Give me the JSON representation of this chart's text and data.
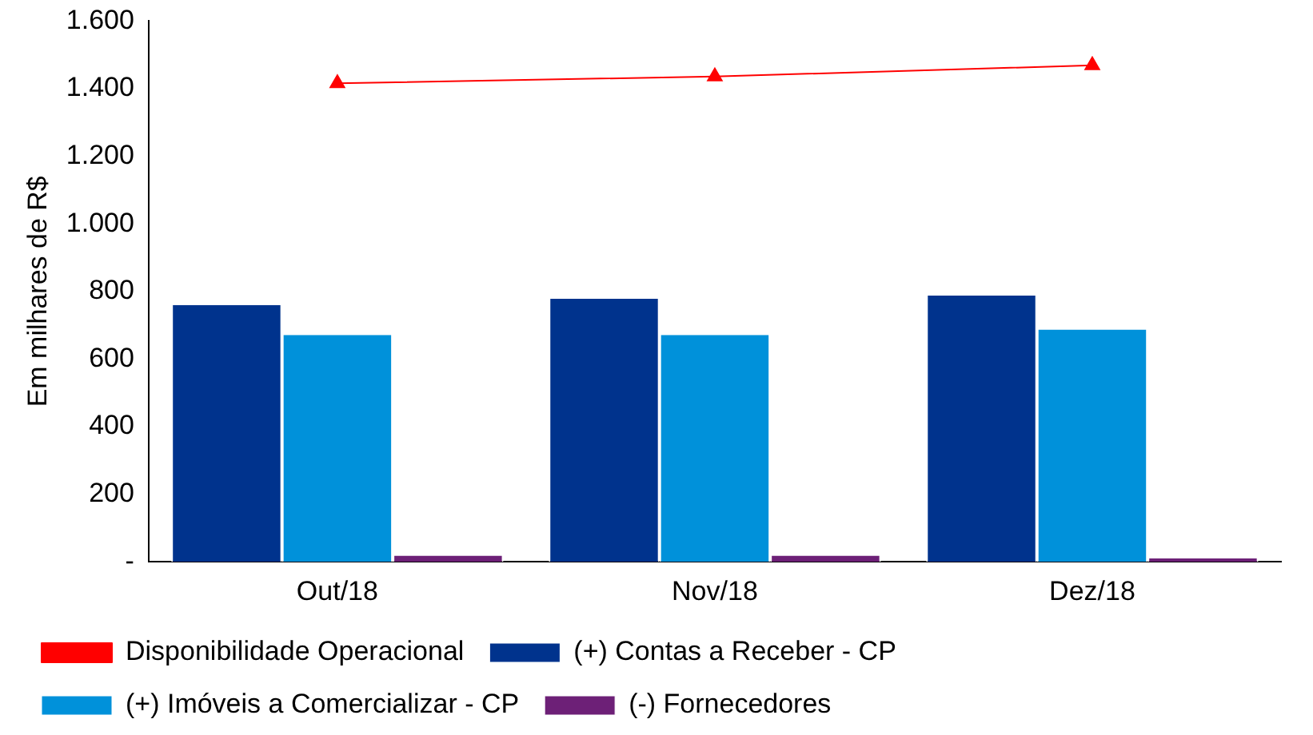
{
  "chart_data": {
    "type": "bar",
    "ylabel": "Em milhares de R$",
    "categories": [
      "Out/18",
      "Nov/18",
      "Dez/18"
    ],
    "series": [
      {
        "name": "(+) Contas a Receber - CP",
        "color": "#00338d",
        "values": [
          760,
          778,
          788
        ]
      },
      {
        "name": "(+) Imóveis a Comercializar - CP",
        "color": "#0091da",
        "values": [
          671,
          671,
          687
        ]
      },
      {
        "name": "(-) Fornecedores",
        "color": "#6d2077",
        "values": [
          18,
          18,
          10
        ]
      },
      {
        "name": "Disponibilidade Operacional",
        "type": "line",
        "color": "#ff0000",
        "marker": "triangle",
        "values": [
          1416,
          1436,
          1469
        ]
      }
    ],
    "ylim": [
      0,
      1600
    ],
    "yticks": [
      {
        "value": 0,
        "label": "-"
      },
      {
        "value": 200,
        "label": "200"
      },
      {
        "value": 400,
        "label": "400"
      },
      {
        "value": 600,
        "label": "600"
      },
      {
        "value": 800,
        "label": "800"
      },
      {
        "value": 1000,
        "label": "1.000"
      },
      {
        "value": 1200,
        "label": "1.200"
      },
      {
        "value": 1400,
        "label": "1.400"
      },
      {
        "value": 1600,
        "label": "1.600"
      }
    ],
    "grid": false,
    "legend": "bottom"
  }
}
